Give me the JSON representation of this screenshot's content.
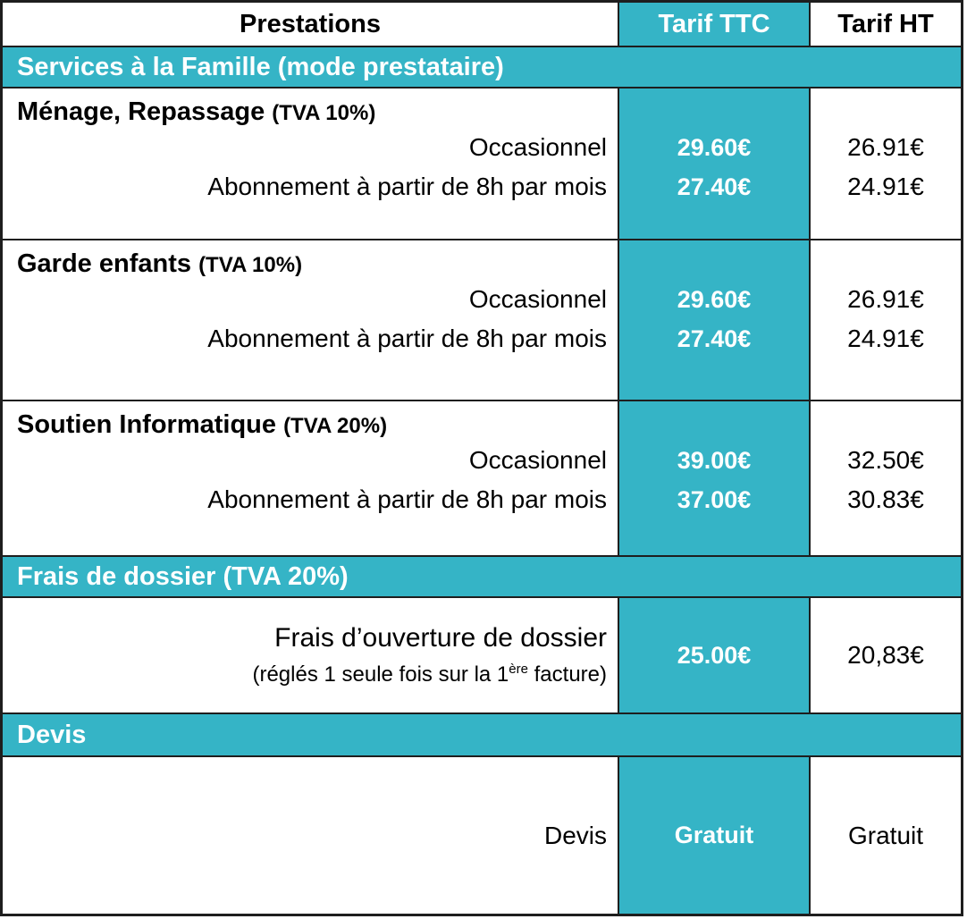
{
  "colors": {
    "teal": "#35b4c6",
    "border": "#1e1e1e",
    "text": "#000000",
    "band_text": "#ffffff"
  },
  "header": {
    "prestations": "Prestations",
    "tarif_ttc": "Tarif TTC",
    "tarif_ht": "Tarif HT"
  },
  "sections": {
    "famille": {
      "band": "Services à la Famille (mode prestataire)",
      "blocks": [
        {
          "title": "Ménage, Repassage",
          "tva": "(TVA 10%)",
          "lines": [
            "Occasionnel",
            "Abonnement à partir de 8h par mois"
          ],
          "ttc": [
            "29.60€",
            "27.40€"
          ],
          "ht": [
            "26.91€",
            "24.91€"
          ]
        },
        {
          "title": "Garde enfants",
          "tva": "(TVA 10%)",
          "lines": [
            "Occasionnel",
            "Abonnement à partir de 8h par mois"
          ],
          "ttc": [
            "29.60€",
            "27.40€"
          ],
          "ht": [
            "26.91€",
            "24.91€"
          ]
        },
        {
          "title": "Soutien Informatique",
          "tva": "(TVA 20%)",
          "lines": [
            "Occasionnel",
            "Abonnement à partir de 8h par mois"
          ],
          "ttc": [
            "39.00€",
            "37.00€"
          ],
          "ht": [
            "32.50€",
            "30.83€"
          ]
        }
      ]
    },
    "frais": {
      "band": "Frais de dossier (TVA 20%)",
      "line1": "Frais d’ouverture de dossier",
      "line2_before": "(réglés 1 seule fois sur la 1",
      "line2_sup": "ère",
      "line2_after": " facture)",
      "ttc": "25.00€",
      "ht": "20,83€"
    },
    "devis": {
      "band": "Devis",
      "label": "Devis",
      "ttc": "Gratuit",
      "ht": "Gratuit"
    }
  }
}
